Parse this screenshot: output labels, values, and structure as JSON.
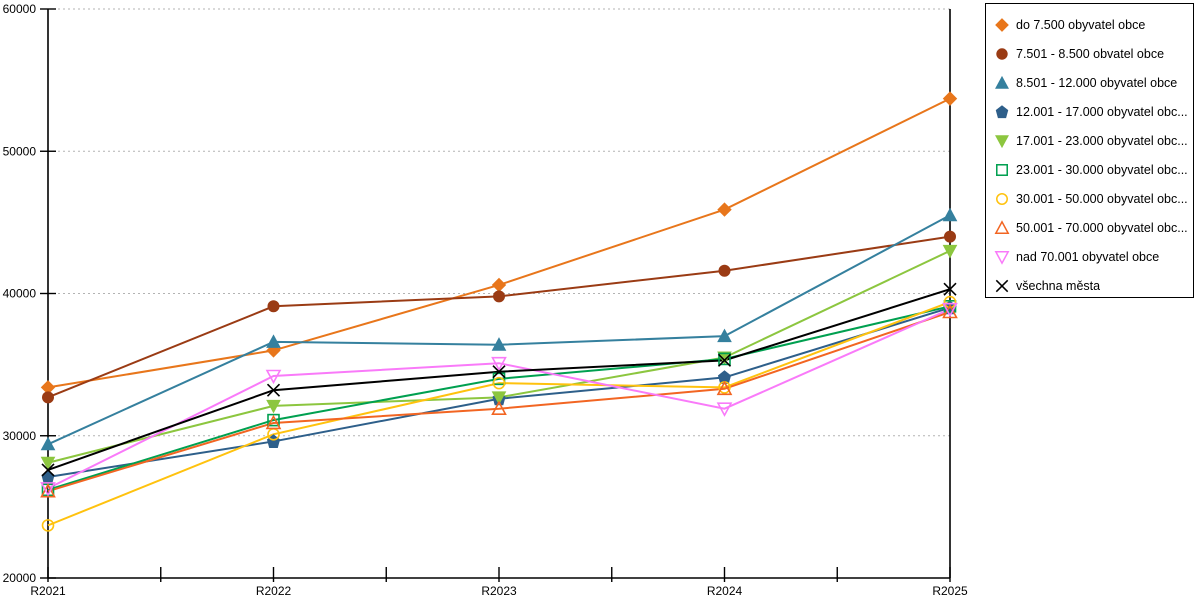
{
  "chart_data": {
    "type": "line",
    "title": "",
    "xlabel": "",
    "ylabel": "",
    "categories": [
      "R2021",
      "R2022",
      "R2023",
      "R2024",
      "R2025"
    ],
    "ylim": [
      20000,
      60000
    ],
    "yticks": [
      20000,
      30000,
      40000,
      50000,
      60000
    ],
    "grid": "horizontal-dotted",
    "grid_color": "#b3b3b3",
    "axis_color": "#000000",
    "legend_position": "right",
    "series": [
      {
        "name": "do 7.500 obyvatel obce",
        "legend_label": "do 7.500 obyvatel obce",
        "color": "#e8761b",
        "marker": "diamond",
        "filled": true,
        "values": [
          33400,
          36000,
          40600,
          45900,
          53700
        ]
      },
      {
        "name": "7.501 - 8.500 obvatel obce",
        "legend_label": "7.501 - 8.500 obvatel obce",
        "color": "#9a3b14",
        "marker": "circle",
        "filled": true,
        "values": [
          32700,
          39100,
          39800,
          41600,
          44000
        ]
      },
      {
        "name": "8.501 - 12.000 obyvatel obce",
        "legend_label": "8.501 - 12.000 obyvatel obce",
        "color": "#35809e",
        "marker": "triangle-up",
        "filled": true,
        "values": [
          29400,
          36600,
          36400,
          37000,
          45500
        ]
      },
      {
        "name": "12.001 - 17.000 obyvatel obce",
        "legend_label": "12.001 - 17.000 obyvatel obc...",
        "color": "#2e5f8a",
        "marker": "pentagon",
        "filled": true,
        "values": [
          27100,
          29600,
          32600,
          34100,
          39000
        ]
      },
      {
        "name": "17.001 - 23.000 obyvatel obce",
        "legend_label": "17.001 - 23.000 obyvatel obc...",
        "color": "#8cc63f",
        "marker": "triangle-down",
        "filled": true,
        "values": [
          28100,
          32100,
          32700,
          35500,
          43000
        ]
      },
      {
        "name": "23.001 - 30.000 obyvatel obce",
        "legend_label": "23.001 - 30.000 obyvatel obc...",
        "color": "#00a050",
        "marker": "square",
        "filled": false,
        "values": [
          26200,
          31100,
          34000,
          35400,
          39100
        ]
      },
      {
        "name": "30.001 - 50.000 obyvatel obce",
        "legend_label": "30.001 - 50.000 obyvatel obc...",
        "color": "#ffc20e",
        "marker": "circle",
        "filled": false,
        "values": [
          23700,
          30100,
          33700,
          33400,
          39400
        ]
      },
      {
        "name": "50.001 - 70.000 obyvatel obce",
        "legend_label": "50.001 - 70.000 obyvatel obc...",
        "color": "#f26522",
        "marker": "triangle-up",
        "filled": false,
        "values": [
          26100,
          30900,
          31900,
          33300,
          38700
        ]
      },
      {
        "name": "nad 70.001 obyvatel obce",
        "legend_label": "nad 70.001 obyvatel obce",
        "color": "#f97af9",
        "marker": "triangle-down",
        "filled": false,
        "values": [
          26300,
          34200,
          35100,
          31900,
          38900
        ]
      },
      {
        "name": "všechna města",
        "legend_label": "všechna města",
        "color": "#000000",
        "marker": "x",
        "filled": false,
        "values": [
          27600,
          33200,
          34500,
          35300,
          40300
        ]
      }
    ]
  }
}
